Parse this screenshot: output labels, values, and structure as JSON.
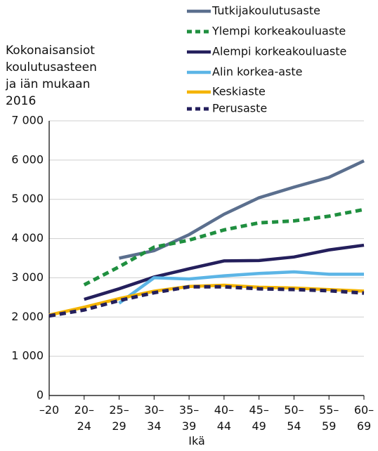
{
  "chart_data": {
    "type": "line",
    "title": "Kokonaisansiot koulutusasteen ja iän mukaan 2016",
    "x_label": "Ikä",
    "categories": [
      "–20",
      "20–24",
      "25–29",
      "30–34",
      "35–39",
      "40–44",
      "45–49",
      "50–54",
      "55–59",
      "60–69"
    ],
    "series": [
      {
        "name": "Tutkijakoulutusaste",
        "color": "#5b6f8e",
        "dash": false,
        "values": [
          null,
          null,
          3500,
          3690,
          4100,
          4620,
          5040,
          5310,
          5560,
          5980
        ]
      },
      {
        "name": "Ylempi korkeakouluaste",
        "color": "#1f8f3f",
        "dash": true,
        "values": [
          null,
          2820,
          3280,
          3780,
          3960,
          4220,
          4400,
          4450,
          4570,
          4740
        ]
      },
      {
        "name": "Alempi korkeakouluaste",
        "color": "#241f5c",
        "dash": false,
        "values": [
          null,
          2450,
          2720,
          3020,
          3230,
          3430,
          3440,
          3530,
          3710,
          3830
        ]
      },
      {
        "name": "Alin korkea-aste",
        "color": "#5cb5e6",
        "dash": false,
        "values": [
          null,
          null,
          2350,
          3000,
          2970,
          3050,
          3110,
          3150,
          3090,
          3090
        ]
      },
      {
        "name": "Keskiaste",
        "color": "#f4b400",
        "dash": false,
        "values": [
          2050,
          2250,
          2470,
          2660,
          2780,
          2810,
          2760,
          2740,
          2700,
          2660
        ]
      },
      {
        "name": "Perusaste",
        "color": "#241f5c",
        "dash": true,
        "values": [
          2030,
          2180,
          2420,
          2620,
          2770,
          2770,
          2720,
          2700,
          2670,
          2610
        ]
      }
    ],
    "ylim": [
      0,
      7000
    ],
    "yticks": [
      0,
      {
        "value": 1000,
        "label": "1 000"
      },
      {
        "value": 2000,
        "label": "2 000"
      },
      {
        "value": 3000,
        "label": "3 000"
      },
      {
        "value": 4000,
        "label": "4 000"
      },
      {
        "value": 5000,
        "label": "5 000"
      },
      {
        "value": 6000,
        "label": "6 000"
      },
      {
        "value": 7000,
        "label": "7 000"
      }
    ],
    "grid": true
  }
}
